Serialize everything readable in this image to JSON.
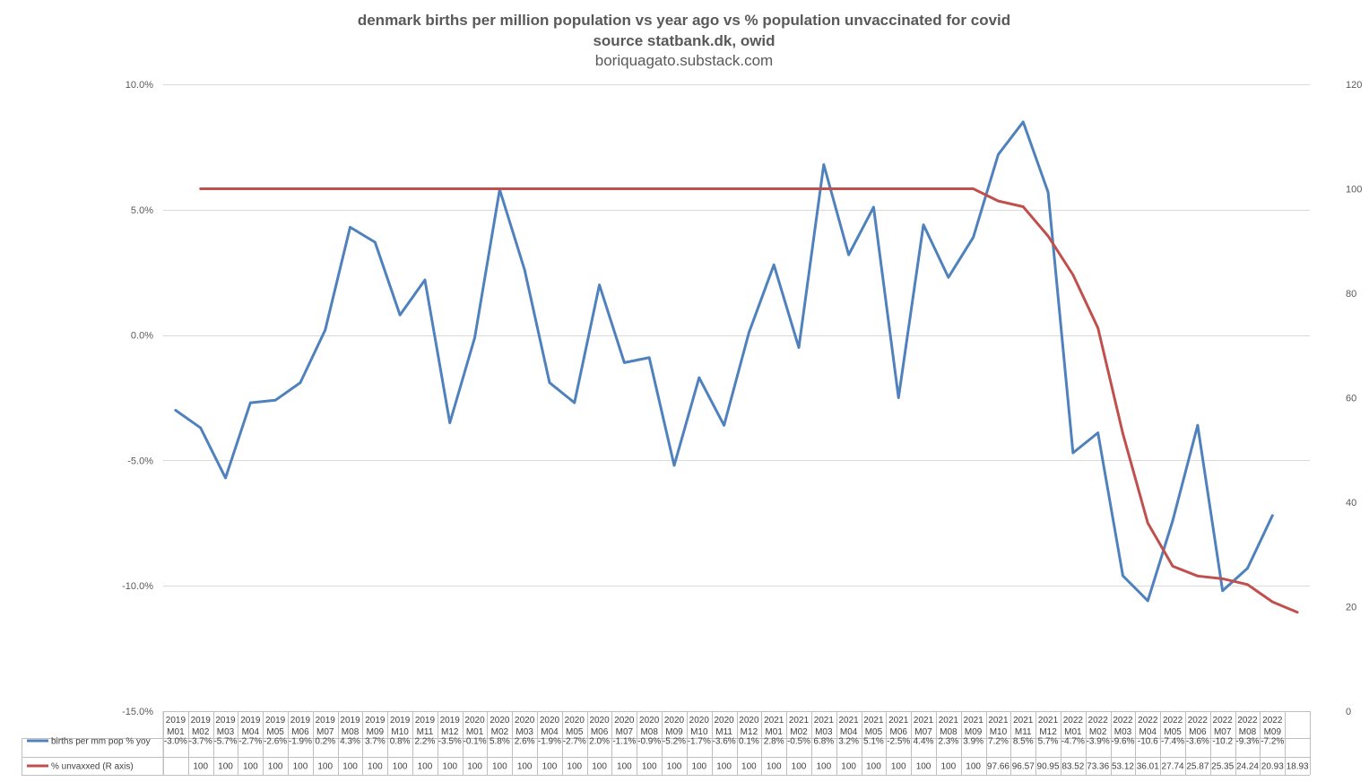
{
  "chart_data": {
    "type": "line",
    "title": "denmark births per million population vs year ago vs % population unvaccinated for covid",
    "subtitle": "source statbank.dk, owid",
    "credit": "boriquagato.substack.com",
    "categories": [
      [
        "2019",
        "M01"
      ],
      [
        "2019",
        "M02"
      ],
      [
        "2019",
        "M03"
      ],
      [
        "2019",
        "M04"
      ],
      [
        "2019",
        "M05"
      ],
      [
        "2019",
        "M06"
      ],
      [
        "2019",
        "M07"
      ],
      [
        "2019",
        "M08"
      ],
      [
        "2019",
        "M09"
      ],
      [
        "2019",
        "M10"
      ],
      [
        "2019",
        "M11"
      ],
      [
        "2019",
        "M12"
      ],
      [
        "2020",
        "M01"
      ],
      [
        "2020",
        "M02"
      ],
      [
        "2020",
        "M03"
      ],
      [
        "2020",
        "M04"
      ],
      [
        "2020",
        "M05"
      ],
      [
        "2020",
        "M06"
      ],
      [
        "2020",
        "M07"
      ],
      [
        "2020",
        "M08"
      ],
      [
        "2020",
        "M09"
      ],
      [
        "2020",
        "M10"
      ],
      [
        "2020",
        "M11"
      ],
      [
        "2020",
        "M12"
      ],
      [
        "2021",
        "M01"
      ],
      [
        "2021",
        "M02"
      ],
      [
        "2021",
        "M03"
      ],
      [
        "2021",
        "M04"
      ],
      [
        "2021",
        "M05"
      ],
      [
        "2021",
        "M06"
      ],
      [
        "2021",
        "M07"
      ],
      [
        "2021",
        "M08"
      ],
      [
        "2021",
        "M09"
      ],
      [
        "2021",
        "M10"
      ],
      [
        "2021",
        "M11"
      ],
      [
        "2021",
        "M12"
      ],
      [
        "2022",
        "M01"
      ],
      [
        "2022",
        "M02"
      ],
      [
        "2022",
        "M03"
      ],
      [
        "2022",
        "M04"
      ],
      [
        "2022",
        "M05"
      ],
      [
        "2022",
        "M06"
      ],
      [
        "2022",
        "M07"
      ],
      [
        "2022",
        "M08"
      ],
      [
        "2022",
        "M09"
      ],
      [
        "",
        ""
      ]
    ],
    "series": [
      {
        "name": "births per mm pop % yoy",
        "axis": "left",
        "color": "#4f81bd",
        "values": [
          -3.0,
          -3.7,
          -5.7,
          -2.7,
          -2.6,
          -1.9,
          0.2,
          4.3,
          3.7,
          0.8,
          2.2,
          -3.5,
          -0.1,
          5.8,
          2.6,
          -1.9,
          -2.7,
          2.0,
          -1.1,
          -0.9,
          -5.2,
          -1.7,
          -3.6,
          0.1,
          2.8,
          -0.5,
          6.8,
          3.2,
          5.1,
          -2.5,
          4.4,
          2.3,
          3.9,
          7.2,
          8.5,
          5.7,
          -4.7,
          -3.9,
          -9.6,
          -10.6,
          -7.4,
          -3.6,
          -10.2,
          -9.3,
          -7.2,
          null
        ],
        "labels": [
          "-3.0%",
          "-3.7%",
          "-5.7%",
          "-2.7%",
          "-2.6%",
          "-1.9%",
          "0.2%",
          "4.3%",
          "3.7%",
          "0.8%",
          "2.2%",
          "-3.5%",
          "-0.1%",
          "5.8%",
          "2.6%",
          "-1.9%",
          "-2.7%",
          "2.0%",
          "-1.1%",
          "-0.9%",
          "-5.2%",
          "-1.7%",
          "-3.6%",
          "0.1%",
          "2.8%",
          "-0.5%",
          "6.8%",
          "3.2%",
          "5.1%",
          "-2.5%",
          "4.4%",
          "2.3%",
          "3.9%",
          "7.2%",
          "8.5%",
          "5.7%",
          "-4.7%",
          "-3.9%",
          "-9.6%",
          "-10.6",
          "-7.4%",
          "-3.6%",
          "-10.2",
          "-9.3%",
          "-7.2%",
          ""
        ]
      },
      {
        "name": "% unvaxxed (R axis)",
        "axis": "right",
        "color": "#c0504d",
        "values": [
          null,
          100,
          100,
          100,
          100,
          100,
          100,
          100,
          100,
          100,
          100,
          100,
          100,
          100,
          100,
          100,
          100,
          100,
          100,
          100,
          100,
          100,
          100,
          100,
          100,
          100,
          100,
          100,
          100,
          100,
          100,
          100,
          100,
          97.66,
          96.57,
          90.95,
          83.52,
          73.36,
          53.12,
          36.01,
          27.74,
          25.87,
          25.35,
          24.24,
          20.93,
          18.93
        ],
        "labels": [
          "",
          "100",
          "100",
          "100",
          "100",
          "100",
          "100",
          "100",
          "100",
          "100",
          "100",
          "100",
          "100",
          "100",
          "100",
          "100",
          "100",
          "100",
          "100",
          "100",
          "100",
          "100",
          "100",
          "100",
          "100",
          "100",
          "100",
          "100",
          "100",
          "100",
          "100",
          "100",
          "100",
          "97.66",
          "96.57",
          "90.95",
          "83.52",
          "73.36",
          "53.12",
          "36.01",
          "27.74",
          "25.87",
          "25.35",
          "24.24",
          "20.93",
          "18.93"
        ]
      }
    ],
    "y_left": {
      "ylim": [
        -15,
        10
      ],
      "ticks": [
        "10.0%",
        "5.0%",
        "0.0%",
        "-5.0%",
        "-10.0%",
        "-15.0%"
      ],
      "tick_values": [
        10,
        5,
        0,
        -5,
        -10,
        -15
      ]
    },
    "y_right": {
      "ylim": [
        0,
        120
      ],
      "ticks": [
        "120",
        "100",
        "80",
        "60",
        "40",
        "20",
        "0"
      ],
      "tick_values": [
        120,
        100,
        80,
        60,
        40,
        20,
        0
      ]
    },
    "grid": true,
    "legend": "data-table"
  }
}
